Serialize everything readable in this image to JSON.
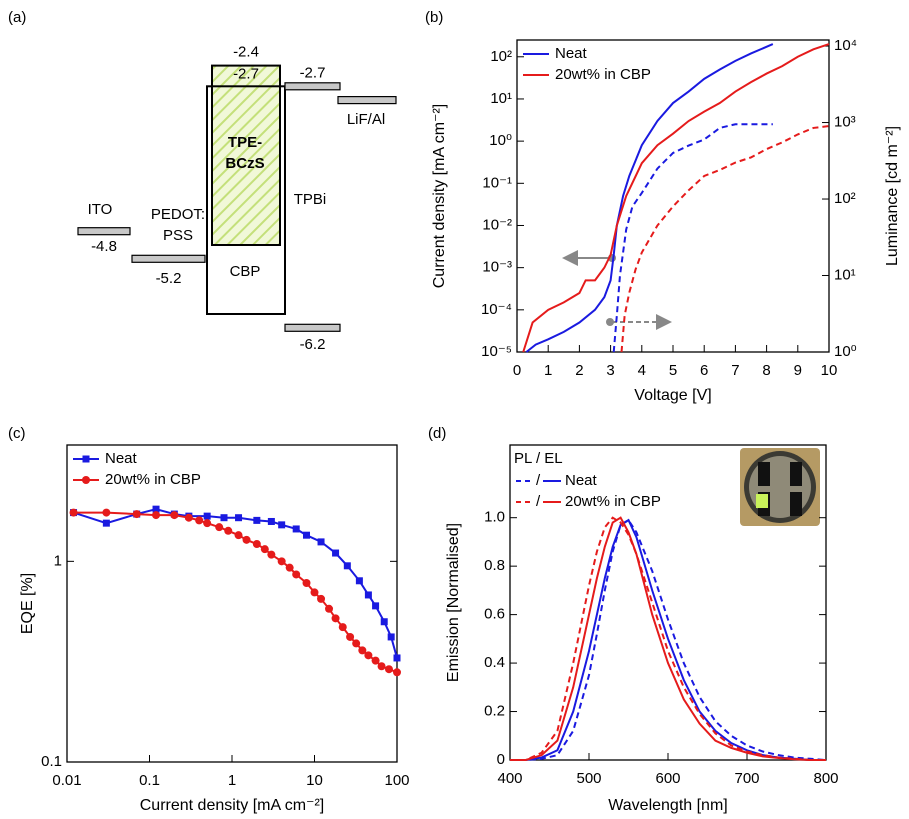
{
  "chart_data": [
    {
      "type": "energy-levels",
      "panel": "(a)",
      "layers": [
        {
          "name": [
            "ITO"
          ],
          "shape": "bar",
          "values": [
            -4.8
          ],
          "value_labels": [
            "-4.8"
          ]
        },
        {
          "name": [
            "PEDOT:",
            "PSS"
          ],
          "shape": "bar",
          "values": [
            -5.2
          ],
          "value_labels": [
            "-5.2"
          ]
        },
        {
          "name": [
            "TPE-",
            "BCzS"
          ],
          "shape": "hatched-box",
          "values": [
            -2.4,
            -5.0
          ],
          "value_labels": [
            "-2.4",
            null
          ]
        },
        {
          "name": [
            "CBP"
          ],
          "shape": "box",
          "values": [
            -2.7,
            -6.0
          ],
          "value_labels": [
            "-2.7",
            null
          ]
        },
        {
          "name": [
            "TPBi"
          ],
          "shape": "bar",
          "values": [
            -2.7,
            -6.2
          ],
          "value_labels": [
            "-2.7",
            "-6.2"
          ]
        },
        {
          "name": [
            "LiF/Al"
          ],
          "shape": "bar",
          "values": [
            -2.9
          ],
          "value_labels": [
            null
          ]
        }
      ]
    },
    {
      "type": "line",
      "panel": "(b)",
      "xlabel": "Voltage [V]",
      "ylabel": "Current density [mA cm⁻²]",
      "y2label": "Luminance [cd m⁻²]",
      "xlim": [
        0,
        10
      ],
      "xticks": [
        0,
        1,
        2,
        3,
        4,
        5,
        6,
        7,
        8,
        9,
        10
      ],
      "yscale": "log",
      "ylim": [
        1e-05,
        250
      ],
      "yticks": [
        {
          "value": 1e-05,
          "label": "10⁻⁵"
        },
        {
          "value": 0.0001,
          "label": "10⁻⁴"
        },
        {
          "value": 0.001,
          "label": "10⁻³"
        },
        {
          "value": 0.01,
          "label": "10⁻²"
        },
        {
          "value": 0.1,
          "label": "10⁻¹"
        },
        {
          "value": 1,
          "label": "10⁰"
        },
        {
          "value": 10,
          "label": "10¹"
        },
        {
          "value": 100,
          "label": "10²"
        }
      ],
      "y2scale": "log",
      "y2lim": [
        1,
        12000
      ],
      "y2ticks": [
        {
          "value": 1,
          "label": "10⁰"
        },
        {
          "value": 10,
          "label": "10¹"
        },
        {
          "value": 100,
          "label": "10²"
        },
        {
          "value": 1000,
          "label": "10³"
        },
        {
          "value": 10000,
          "label": "10⁴"
        }
      ],
      "legend": "upper left",
      "series": [
        {
          "name": "Neat",
          "color": "#1a1ae0",
          "dash": false,
          "x": [
            0.3,
            0.6,
            1,
            1.5,
            2,
            2.5,
            2.8,
            3,
            3.1,
            3.2,
            3.4,
            3.6,
            4,
            4.5,
            5,
            5.5,
            6,
            6.5,
            7,
            7.5,
            8.2
          ],
          "values": [
            1e-05,
            1.5e-05,
            2e-05,
            3e-05,
            5e-05,
            0.0001,
            0.0002,
            0.0005,
            0.002,
            0.01,
            0.05,
            0.15,
            0.8,
            3,
            8,
            15,
            30,
            50,
            80,
            120,
            200
          ]
        },
        {
          "name": "20wt% in CBP",
          "color": "#e51b1b",
          "dash": false,
          "x": [
            0.2,
            0.5,
            1,
            1.5,
            2,
            2.2,
            2.5,
            2.8,
            3,
            3.2,
            3.5,
            4,
            4.5,
            5,
            5.5,
            6,
            6.5,
            7,
            7.5,
            8,
            8.5,
            9,
            9.5,
            10
          ],
          "values": [
            1e-05,
            5e-05,
            0.0001,
            0.00015,
            0.00025,
            0.0005,
            0.0005,
            0.001,
            0.002,
            0.01,
            0.05,
            0.3,
            0.8,
            1.5,
            3,
            5,
            8,
            15,
            25,
            40,
            60,
            100,
            150,
            200
          ]
        },
        {
          "color": "#1a1ae0",
          "dash": true,
          "axis": "y2",
          "x": [
            3.1,
            3.2,
            3.3,
            3.5,
            3.7,
            4,
            4.5,
            5,
            5.5,
            6,
            6.5,
            7,
            7.5,
            8.2
          ],
          "values": [
            1,
            3,
            10,
            40,
            80,
            120,
            250,
            400,
            500,
            600,
            850,
            950,
            950,
            950
          ]
        },
        {
          "color": "#e51b1b",
          "dash": true,
          "axis": "y2",
          "x": [
            3.35,
            3.45,
            3.6,
            3.8,
            4,
            4.5,
            5,
            5.5,
            6,
            6.5,
            7,
            7.5,
            8,
            8.5,
            9,
            9.5,
            10
          ],
          "values": [
            1,
            3,
            6,
            12,
            20,
            45,
            80,
            130,
            200,
            240,
            300,
            350,
            450,
            550,
            700,
            850,
            900
          ]
        }
      ]
    },
    {
      "type": "line",
      "panel": "(c)",
      "xlabel": "Current density [mA cm⁻²]",
      "ylabel": "EQE [%]",
      "xscale": "log",
      "xlim": [
        0.01,
        100
      ],
      "xticks": [
        0.01,
        0.1,
        1,
        10,
        100
      ],
      "yscale": "log",
      "ylim": [
        0.1,
        3.8
      ],
      "yticks": [
        0.1,
        1
      ],
      "legend": "upper left",
      "series": [
        {
          "name": "Neat",
          "color": "#1a1ae0",
          "marker": "square",
          "x": [
            0.012,
            0.03,
            0.07,
            0.12,
            0.2,
            0.3,
            0.5,
            0.8,
            1.2,
            2,
            3,
            4,
            6,
            8,
            12,
            18,
            25,
            35,
            45,
            55,
            70,
            85,
            100
          ],
          "values": [
            1.75,
            1.55,
            1.72,
            1.82,
            1.72,
            1.68,
            1.68,
            1.65,
            1.65,
            1.6,
            1.58,
            1.52,
            1.45,
            1.35,
            1.25,
            1.1,
            0.95,
            0.8,
            0.68,
            0.6,
            0.5,
            0.42,
            0.33
          ]
        },
        {
          "name": "20wt% in CBP",
          "color": "#e51b1b",
          "marker": "circle",
          "x": [
            0.012,
            0.03,
            0.07,
            0.12,
            0.2,
            0.3,
            0.4,
            0.5,
            0.7,
            0.9,
            1.2,
            1.5,
            2,
            2.5,
            3,
            4,
            5,
            6,
            8,
            10,
            12,
            15,
            18,
            22,
            27,
            32,
            38,
            45,
            55,
            65,
            80,
            100
          ],
          "values": [
            1.75,
            1.75,
            1.72,
            1.7,
            1.7,
            1.65,
            1.6,
            1.55,
            1.48,
            1.42,
            1.35,
            1.28,
            1.22,
            1.15,
            1.08,
            1.0,
            0.93,
            0.86,
            0.78,
            0.7,
            0.65,
            0.58,
            0.52,
            0.47,
            0.42,
            0.39,
            0.36,
            0.34,
            0.32,
            0.3,
            0.29,
            0.28
          ]
        }
      ]
    },
    {
      "type": "line",
      "panel": "(d)",
      "xlabel": "Wavelength [nm]",
      "ylabel": "Emission [Normalised]",
      "xlim": [
        400,
        800
      ],
      "xticks": [
        400,
        500,
        600,
        700,
        800
      ],
      "ylim": [
        0,
        1.3
      ],
      "yticks": [
        0,
        0.2,
        0.4,
        0.6,
        0.8,
        {
          "value": 1,
          "label": "1.0"
        }
      ],
      "legend": "upper left",
      "legend_title": "PL / EL",
      "legend_separator": "/",
      "x": [
        400,
        420,
        440,
        460,
        480,
        500,
        510,
        520,
        530,
        540,
        550,
        560,
        580,
        600,
        620,
        640,
        660,
        680,
        700,
        720,
        740,
        760,
        780,
        800
      ],
      "series": [
        {
          "color": "#1a1ae0",
          "dash": true,
          "values": [
            0,
            0,
            0.005,
            0.02,
            0.12,
            0.35,
            0.52,
            0.7,
            0.86,
            0.97,
            0.99,
            0.94,
            0.78,
            0.58,
            0.4,
            0.26,
            0.16,
            0.1,
            0.06,
            0.035,
            0.02,
            0.01,
            0.005,
            0
          ]
        },
        {
          "name": "Neat",
          "color": "#1a1ae0",
          "dash": false,
          "values": [
            0,
            0,
            0.01,
            0.04,
            0.2,
            0.45,
            0.6,
            0.75,
            0.88,
            0.97,
            0.99,
            0.92,
            0.7,
            0.5,
            0.33,
            0.2,
            0.12,
            0.07,
            0.04,
            0.02,
            0.01,
            0.005,
            0,
            0
          ]
        },
        {
          "color": "#e51b1b",
          "dash": true,
          "values": [
            0,
            0,
            0.03,
            0.12,
            0.4,
            0.72,
            0.86,
            0.96,
            1.0,
            0.98,
            0.93,
            0.85,
            0.65,
            0.45,
            0.3,
            0.19,
            0.11,
            0.06,
            0.035,
            0.02,
            0.01,
            0.005,
            0,
            0
          ]
        },
        {
          "name": "20wt% in CBP",
          "color": "#e51b1b",
          "dash": false,
          "values": [
            0,
            0,
            0.02,
            0.08,
            0.3,
            0.6,
            0.75,
            0.88,
            0.98,
            1.0,
            0.94,
            0.85,
            0.6,
            0.4,
            0.25,
            0.15,
            0.08,
            0.05,
            0.03,
            0.015,
            0.008,
            0.003,
            0,
            0
          ]
        }
      ]
    }
  ]
}
